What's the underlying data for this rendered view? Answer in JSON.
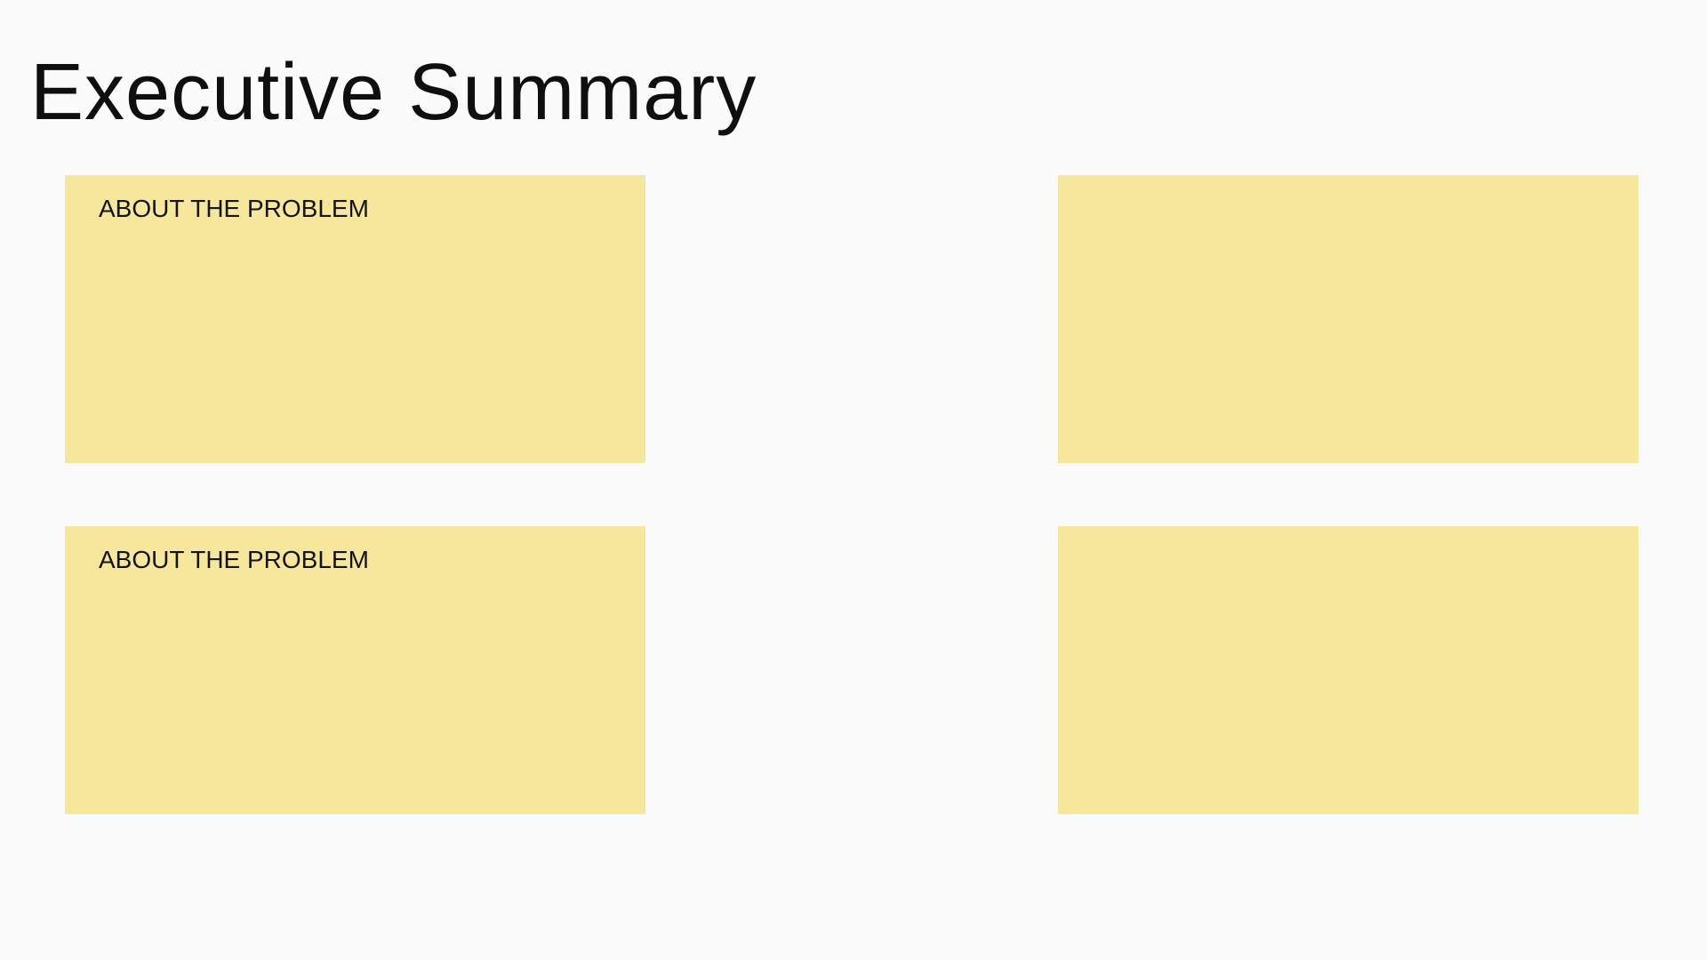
{
  "slide": {
    "title": "Executive Summary",
    "background_color": "#fcfbfc"
  },
  "notes": [
    {
      "label": "ABOUT THE PROBLEM",
      "color": "#f6e79c"
    },
    {
      "label": "",
      "color": "#f6e79c"
    },
    {
      "label": "ABOUT THE PROBLEM",
      "color": "#f6e79c"
    },
    {
      "label": "",
      "color": "#f6e79c"
    }
  ]
}
